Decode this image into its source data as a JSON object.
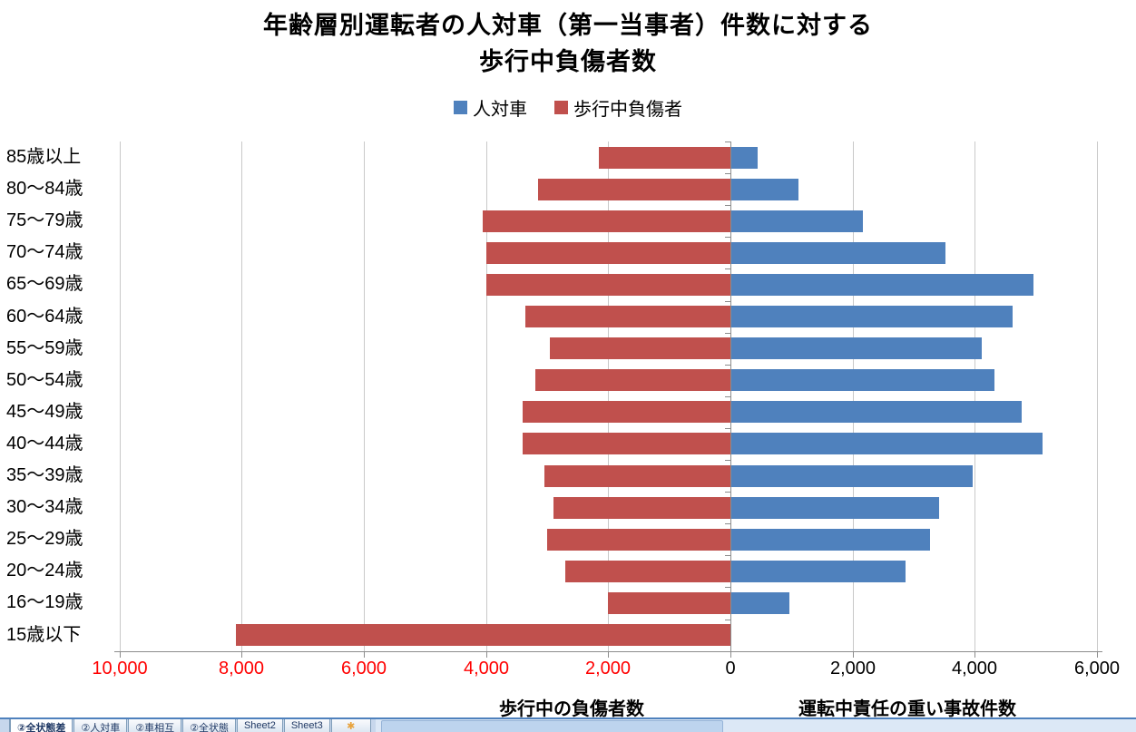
{
  "title": {
    "line1": "年齢層別運転者の人対車（第一当事者）件数に対する",
    "line2": "歩行中負傷者数"
  },
  "chart_data": {
    "type": "bar",
    "orientation": "horizontal-diverging",
    "title": "年齢層別運転者の人対車（第一当事者）件数に対する 歩行中負傷者数",
    "categories": [
      "85歳以上",
      "80～84歳",
      "75～79歳",
      "70～74歳",
      "65～69歳",
      "60～64歳",
      "55～59歳",
      "50～54歳",
      "45～49歳",
      "40～44歳",
      "35～39歳",
      "30～34歳",
      "25～29歳",
      "20～24歳",
      "16～19歳",
      "15歳以下"
    ],
    "series": [
      {
        "name": "人対車",
        "side": "right",
        "color": "#4F81BD",
        "values": [
          430,
          1100,
          2150,
          3500,
          4950,
          4600,
          4100,
          4300,
          4750,
          5100,
          3950,
          3400,
          3250,
          2850,
          950,
          0
        ]
      },
      {
        "name": "歩行中負傷者",
        "side": "left",
        "color": "#C0504D",
        "values": [
          2150,
          3150,
          4050,
          4000,
          4000,
          3350,
          2950,
          3200,
          3400,
          3400,
          3050,
          2900,
          3000,
          2700,
          2000,
          8100
        ]
      }
    ],
    "x_axis": {
      "left_max": 10000,
      "right_max": 6000,
      "tick_step": 2000,
      "grid": true,
      "ticks": [
        {
          "label": "10,000",
          "value": -10000,
          "color": "#FF0000"
        },
        {
          "label": "8,000",
          "value": -8000,
          "color": "#FF0000"
        },
        {
          "label": "6,000",
          "value": -6000,
          "color": "#FF0000"
        },
        {
          "label": "4,000",
          "value": -4000,
          "color": "#FF0000"
        },
        {
          "label": "2,000",
          "value": -2000,
          "color": "#FF0000"
        },
        {
          "label": "0",
          "value": 0,
          "color": "#000000"
        },
        {
          "label": "2,000",
          "value": 2000,
          "color": "#000000"
        },
        {
          "label": "4,000",
          "value": 4000,
          "color": "#000000"
        },
        {
          "label": "6,000",
          "value": 6000,
          "color": "#000000"
        }
      ]
    },
    "xlabel_left": "歩行中の負傷者数",
    "xlabel_right": "運転中責任の重い事故件数",
    "legend_position": "top"
  },
  "sheet_tabs": {
    "tabs": [
      "②全状態差",
      "②人対車",
      "②車相互",
      "②全状態",
      "Sheet2",
      "Sheet3"
    ],
    "active": "②全状態差",
    "insert_worksheet_glyph": "✱"
  }
}
